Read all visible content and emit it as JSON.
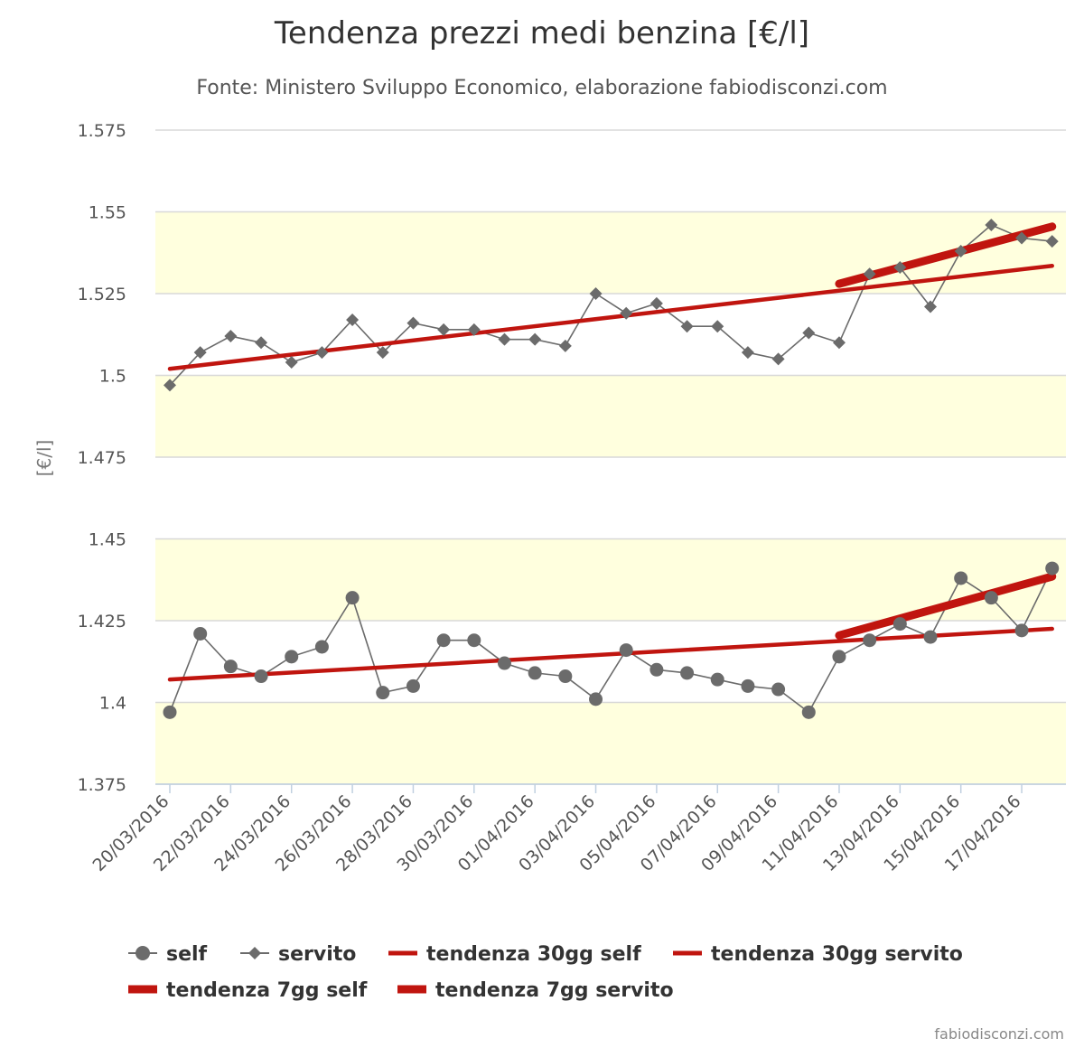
{
  "chart_data": {
    "type": "line",
    "title": "Tendenza prezzi medi benzina [€/l]",
    "subtitle": "Fonte: Ministero Sviluppo Economico, elaborazione fabiodisconzi.com",
    "ylabel": "[€/l]",
    "xlabel": "",
    "ylim": [
      1.375,
      1.575
    ],
    "yticks": [
      "1.375",
      "1.4",
      "1.425",
      "1.45",
      "1.475",
      "1.5",
      "1.525",
      "1.55",
      "1.575"
    ],
    "bands": [
      [
        1.375,
        1.4
      ],
      [
        1.425,
        1.45
      ],
      [
        1.475,
        1.5
      ],
      [
        1.525,
        1.55
      ]
    ],
    "band_color": "#ffffde",
    "grid": true,
    "legend_position": "bottom",
    "x": [
      "20/03/2016",
      "21/03/2016",
      "22/03/2016",
      "23/03/2016",
      "24/03/2016",
      "25/03/2016",
      "26/03/2016",
      "27/03/2016",
      "28/03/2016",
      "29/03/2016",
      "30/03/2016",
      "31/03/2016",
      "01/04/2016",
      "02/04/2016",
      "03/04/2016",
      "04/04/2016",
      "05/04/2016",
      "06/04/2016",
      "07/04/2016",
      "08/04/2016",
      "09/04/2016",
      "10/04/2016",
      "11/04/2016",
      "12/04/2016",
      "13/04/2016",
      "14/04/2016",
      "15/04/2016",
      "16/04/2016",
      "17/04/2016",
      "18/04/2016"
    ],
    "xtick_labels": [
      "20/03/2016",
      "22/03/2016",
      "24/03/2016",
      "26/03/2016",
      "28/03/2016",
      "30/03/2016",
      "01/04/2016",
      "03/04/2016",
      "05/04/2016",
      "07/04/2016",
      "09/04/2016",
      "11/04/2016",
      "13/04/2016",
      "15/04/2016",
      "17/04/2016"
    ],
    "series": [
      {
        "name": "self",
        "marker": "circle",
        "color": "#6b6b6b",
        "values": [
          1.397,
          1.421,
          1.411,
          1.408,
          1.414,
          1.417,
          1.432,
          1.403,
          1.405,
          1.419,
          1.419,
          1.412,
          1.409,
          1.408,
          1.401,
          1.416,
          1.41,
          1.409,
          1.407,
          1.405,
          1.404,
          1.397,
          1.414,
          1.419,
          1.424,
          1.42,
          1.438,
          1.432,
          1.422,
          1.441
        ]
      },
      {
        "name": "servito",
        "marker": "diamond",
        "color": "#6b6b6b",
        "values": [
          1.497,
          1.507,
          1.512,
          1.51,
          1.504,
          1.507,
          1.517,
          1.507,
          1.516,
          1.514,
          1.514,
          1.511,
          1.511,
          1.509,
          1.525,
          1.519,
          1.522,
          1.515,
          1.515,
          1.507,
          1.505,
          1.513,
          1.51,
          1.531,
          1.533,
          1.521,
          1.538,
          1.546,
          1.542,
          1.541
        ]
      },
      {
        "name": "tendenza 30gg self",
        "color": "#c0150f",
        "weight": "thin",
        "x_range": [
          "20/03/2016",
          "18/04/2016"
        ],
        "y_range": [
          1.407,
          1.4225
        ]
      },
      {
        "name": "tendenza 30gg servito",
        "color": "#c0150f",
        "weight": "thin",
        "x_range": [
          "20/03/2016",
          "18/04/2016"
        ],
        "y_range": [
          1.502,
          1.5335
        ]
      },
      {
        "name": "tendenza 7gg self",
        "color": "#c0150f",
        "weight": "thick",
        "x_range": [
          "11/04/2016",
          "18/04/2016"
        ],
        "y_range": [
          1.4205,
          1.4385
        ]
      },
      {
        "name": "tendenza 7gg servito",
        "color": "#c0150f",
        "weight": "thick",
        "x_range": [
          "11/04/2016",
          "18/04/2016"
        ],
        "y_range": [
          1.528,
          1.5455
        ]
      }
    ]
  },
  "credit": "fabiodisconzi.com"
}
